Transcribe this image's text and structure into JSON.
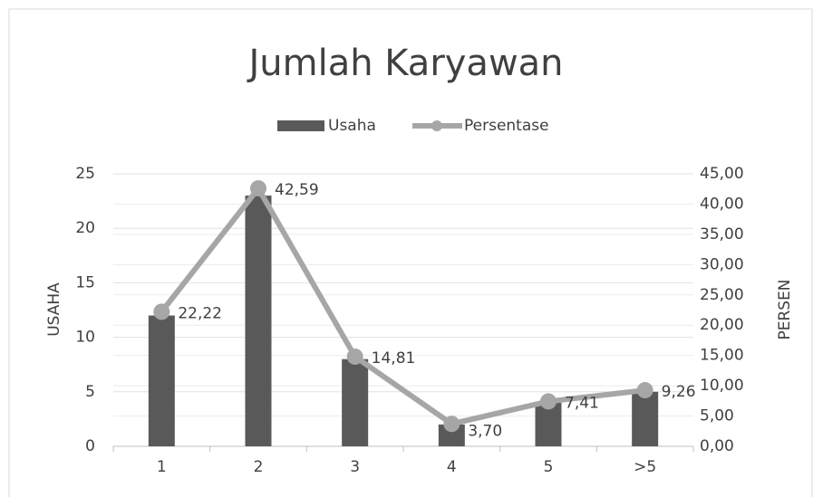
{
  "chart_data": {
    "type": "bar",
    "title": "Jumlah Karyawan",
    "categories": [
      "1",
      "2",
      "3",
      "4",
      "5",
      ">5"
    ],
    "series": [
      {
        "name": "Usaha",
        "type": "bar",
        "color": "#595959",
        "values": [
          12,
          23,
          8,
          2,
          4,
          5
        ]
      },
      {
        "name": "Persentase",
        "type": "line",
        "axis": "y2",
        "color": "#a6a6a6",
        "values": [
          22.22,
          42.59,
          14.81,
          3.7,
          7.41,
          9.26
        ],
        "value_labels": [
          "22,22",
          "42,59",
          "14,81",
          "3,70",
          "7,41",
          "9,26"
        ]
      }
    ],
    "ylabel": "USAHA",
    "y2label": "PERSEN",
    "ylim": [
      0,
      25
    ],
    "yticks": [
      0,
      5,
      10,
      15,
      20,
      25
    ],
    "y2lim": [
      0,
      45
    ],
    "y2ticks": [
      {
        "value": 0,
        "label": "0,00"
      },
      {
        "value": 5,
        "label": "5,00"
      },
      {
        "value": 10,
        "label": "10,00"
      },
      {
        "value": 15,
        "label": "15,00"
      },
      {
        "value": 20,
        "label": "20,00"
      },
      {
        "value": 25,
        "label": "25,00"
      },
      {
        "value": 30,
        "label": "30,00"
      },
      {
        "value": 35,
        "label": "35,00"
      },
      {
        "value": 40,
        "label": "40,00"
      },
      {
        "value": 45,
        "label": "45,00"
      }
    ],
    "grid": true,
    "legend": "top"
  }
}
